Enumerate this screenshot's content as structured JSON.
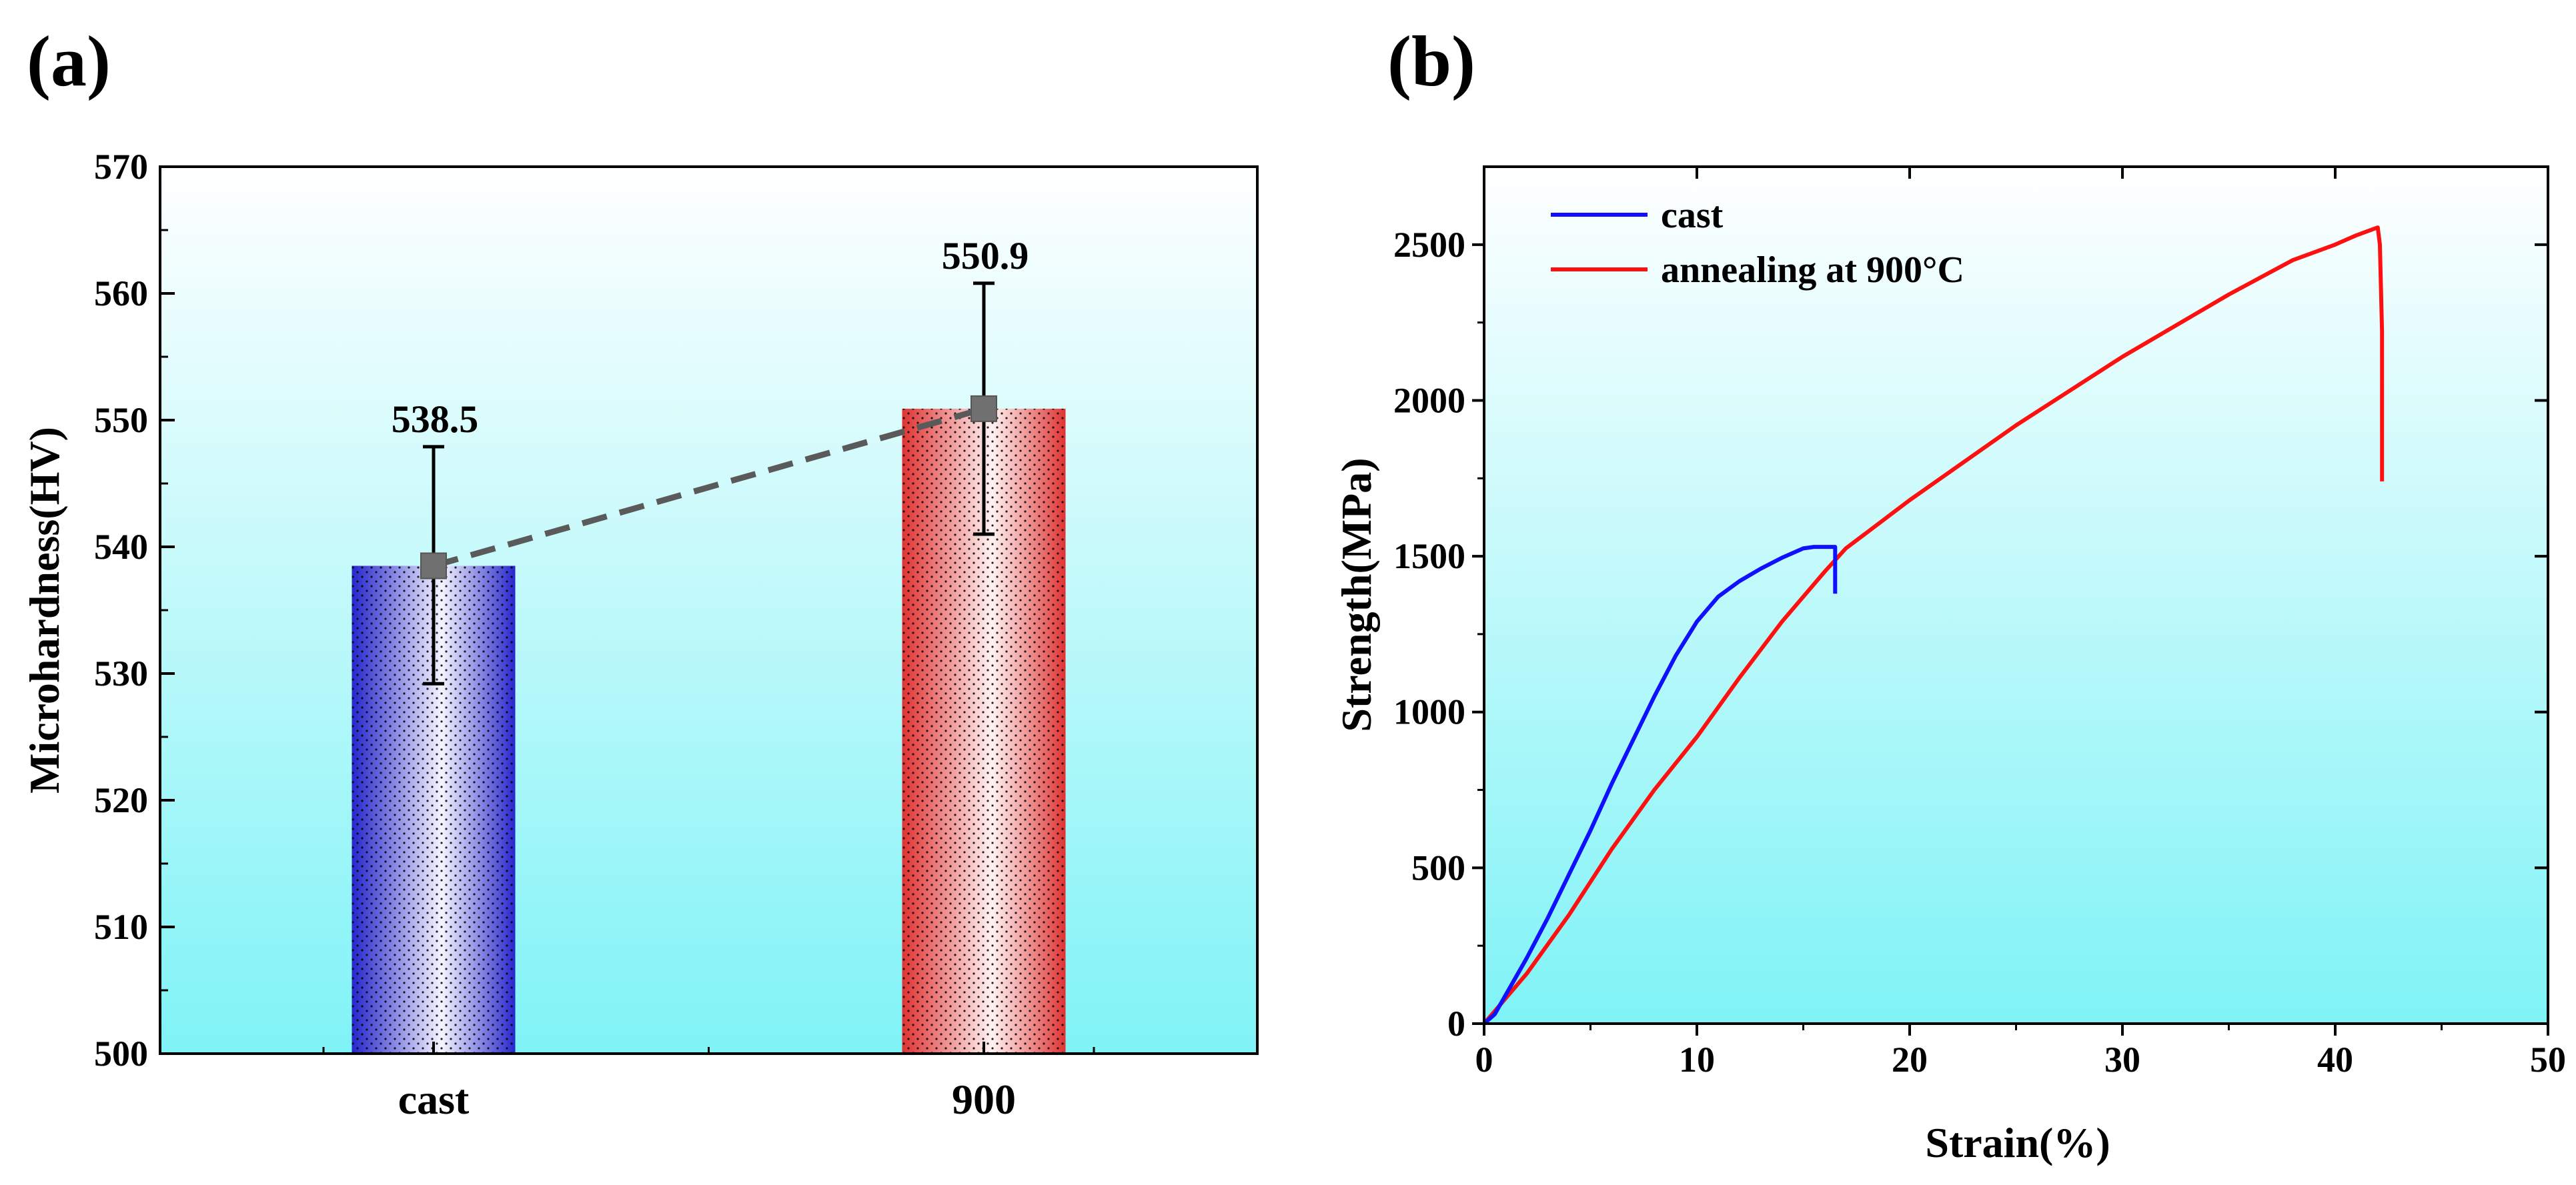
{
  "figure": {
    "panel_a_label": "(a)",
    "panel_b_label": "(b)"
  },
  "colors": {
    "bg_top": "#ffffff",
    "bg_bottom": "#7ff3f6",
    "cast": "#2929d6",
    "annealed": "#e23b3b",
    "marker": "#707070",
    "line_cast": "#1010ff",
    "line_annealed": "#ff1010"
  },
  "chart_data": [
    {
      "type": "bar",
      "title": "",
      "xlabel": "",
      "ylabel": "Microhardness(HV)",
      "categories": [
        "cast",
        "900"
      ],
      "values": [
        538.5,
        550.9
      ],
      "value_labels": [
        "538.5",
        "550.9"
      ],
      "error_upper": [
        547.9,
        560.8
      ],
      "error_lower": [
        529.2,
        541.0
      ],
      "ylim": [
        500,
        570
      ],
      "yticks": [
        500,
        510,
        520,
        530,
        540,
        550,
        560,
        570
      ],
      "ytick_labels": [
        "500",
        "510",
        "520",
        "530",
        "540",
        "550",
        "560",
        "570"
      ],
      "connector": "dashed line through bar means"
    },
    {
      "type": "line",
      "title": "",
      "xlabel": "Strain(%)",
      "ylabel": "Strength(MPa)",
      "xlim": [
        0,
        50
      ],
      "ylim": [
        0,
        2750
      ],
      "xticks": [
        0,
        10,
        20,
        30,
        40,
        50
      ],
      "xtick_labels": [
        "0",
        "10",
        "20",
        "30",
        "40",
        "50"
      ],
      "yticks": [
        0,
        500,
        1000,
        1500,
        2000,
        2500
      ],
      "ytick_labels": [
        "0",
        "500",
        "1000",
        "1500",
        "2000",
        "2500"
      ],
      "legend_position": "top-left",
      "series": [
        {
          "name": "cast",
          "x": [
            0,
            0.5,
            1,
            2,
            3,
            4,
            5,
            6,
            7,
            8,
            9,
            10,
            11,
            12,
            13,
            14,
            15,
            15.5,
            16,
            16.3,
            16.5,
            16.5,
            16.5
          ],
          "y": [
            0,
            30,
            90,
            210,
            340,
            480,
            620,
            770,
            910,
            1050,
            1180,
            1290,
            1370,
            1420,
            1460,
            1495,
            1525,
            1530,
            1530,
            1530,
            1530,
            1450,
            1380
          ]
        },
        {
          "name": "annealing at 900°C",
          "x": [
            0,
            1,
            2,
            4,
            6,
            8,
            10,
            12,
            14,
            16,
            17,
            20,
            25,
            30,
            35,
            38,
            40,
            41,
            42,
            42.1,
            42.2,
            42.2
          ],
          "y": [
            0,
            80,
            160,
            350,
            560,
            750,
            920,
            1110,
            1290,
            1450,
            1525,
            1680,
            1920,
            2140,
            2340,
            2450,
            2500,
            2530,
            2555,
            2500,
            2220,
            1740
          ]
        }
      ]
    }
  ]
}
